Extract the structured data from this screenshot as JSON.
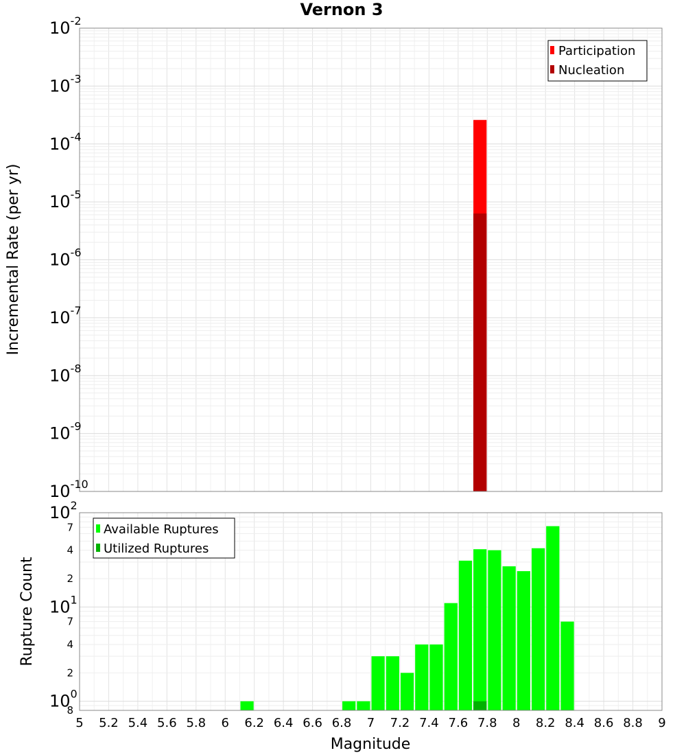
{
  "chart_data": [
    {
      "type": "bar",
      "title": "Vernon 3",
      "xlabel": "",
      "ylabel": "Incremental Rate (per yr)",
      "yscale": "log",
      "xlim": [
        5,
        9
      ],
      "ylim": [
        1e-10,
        0.01
      ],
      "bin_width": 0.1,
      "y_tick_labels": [
        {
          "base": "10",
          "exp": "-2"
        },
        {
          "base": "10",
          "exp": "-3"
        },
        {
          "base": "10",
          "exp": "-4"
        },
        {
          "base": "10",
          "exp": "-5"
        },
        {
          "base": "10",
          "exp": "-6"
        },
        {
          "base": "10",
          "exp": "-7"
        },
        {
          "base": "10",
          "exp": "-8"
        },
        {
          "base": "10",
          "exp": "-9"
        },
        {
          "base": "10",
          "exp": "-10"
        }
      ],
      "legend_position": "top-right",
      "series": [
        {
          "name": "Participation",
          "color": "#ff0000",
          "x": [
            7.75
          ],
          "values": [
            0.00026
          ]
        },
        {
          "name": "Nucleation",
          "color": "#b20000",
          "x": [
            7.75
          ],
          "values": [
            6.3e-06
          ]
        }
      ]
    },
    {
      "type": "bar",
      "xlabel": "Magnitude",
      "ylabel": "Rupture Count",
      "yscale": "log",
      "xlim": [
        5,
        9
      ],
      "ylim": [
        0.8,
        100
      ],
      "bin_width": 0.1,
      "x_tick_labels": [
        "5",
        "5.2",
        "5.4",
        "5.6",
        "5.8",
        "6",
        "6.2",
        "6.4",
        "6.6",
        "6.8",
        "7",
        "7.2",
        "7.4",
        "7.6",
        "7.8",
        "8",
        "8.2",
        "8.4",
        "8.6",
        "8.8",
        "9"
      ],
      "y_tick_labels": [
        {
          "base": "10",
          "exp": "2"
        },
        {
          "base": "10",
          "exp": "1"
        },
        {
          "base": "10",
          "exp": "0"
        }
      ],
      "y_minor_labels": [
        "7",
        "4",
        "2",
        "7",
        "4",
        "2",
        "8"
      ],
      "legend_position": "top-left",
      "series": [
        {
          "name": "Available Ruptures",
          "color": "#00ff00",
          "x": [
            6.15,
            6.85,
            6.95,
            7.05,
            7.15,
            7.25,
            7.35,
            7.45,
            7.55,
            7.65,
            7.75,
            7.85,
            7.95,
            8.05,
            8.15,
            8.25,
            8.35
          ],
          "values": [
            1,
            1,
            1,
            3,
            3,
            2,
            4,
            4,
            11,
            31,
            41,
            40,
            27,
            24,
            42,
            72,
            7
          ]
        },
        {
          "name": "Utilized Ruptures",
          "color": "#00b200",
          "x": [
            7.75
          ],
          "values": [
            1
          ]
        }
      ]
    }
  ]
}
